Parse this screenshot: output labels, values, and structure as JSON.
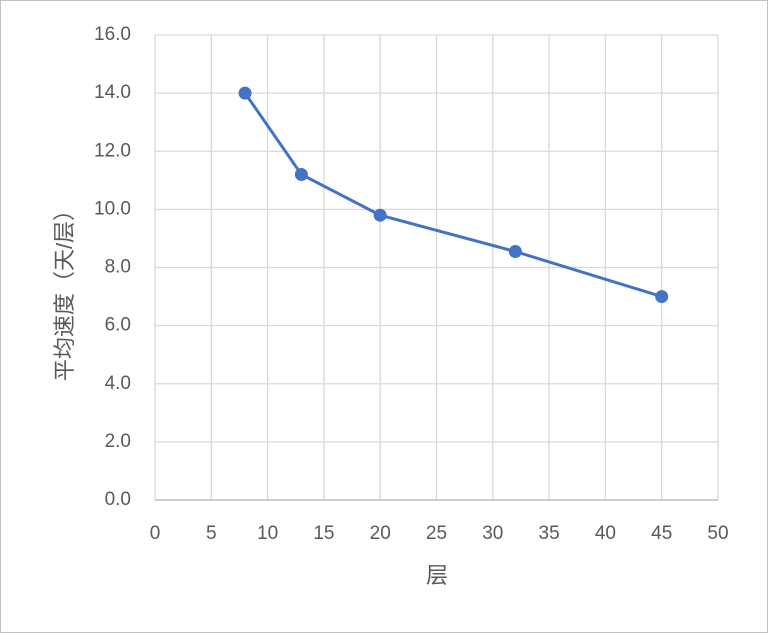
{
  "chart_data": {
    "type": "line",
    "x_label": "层",
    "y_label": "平均速度（天/层）",
    "series": [
      {
        "color": "#4472c4",
        "x": [
          8,
          13,
          20,
          32,
          45
        ],
        "values": [
          14.0,
          11.2,
          9.8,
          8.55,
          7.0
        ]
      }
    ],
    "xlim": [
      0,
      50
    ],
    "xticks": [
      0,
      5,
      10,
      15,
      20,
      25,
      30,
      35,
      40,
      45,
      50
    ],
    "ylim": [
      0,
      16
    ],
    "yticks": [
      {
        "value": 0,
        "label": "0.0"
      },
      {
        "value": 2,
        "label": "2.0"
      },
      {
        "value": 4,
        "label": "4.0"
      },
      {
        "value": 6,
        "label": "6.0"
      },
      {
        "value": 8,
        "label": "8.0"
      },
      {
        "value": 10,
        "label": "10.0"
      },
      {
        "value": 12,
        "label": "12.0"
      },
      {
        "value": 14,
        "label": "14.0"
      },
      {
        "value": 16,
        "label": "16.0"
      }
    ],
    "grid": true
  }
}
